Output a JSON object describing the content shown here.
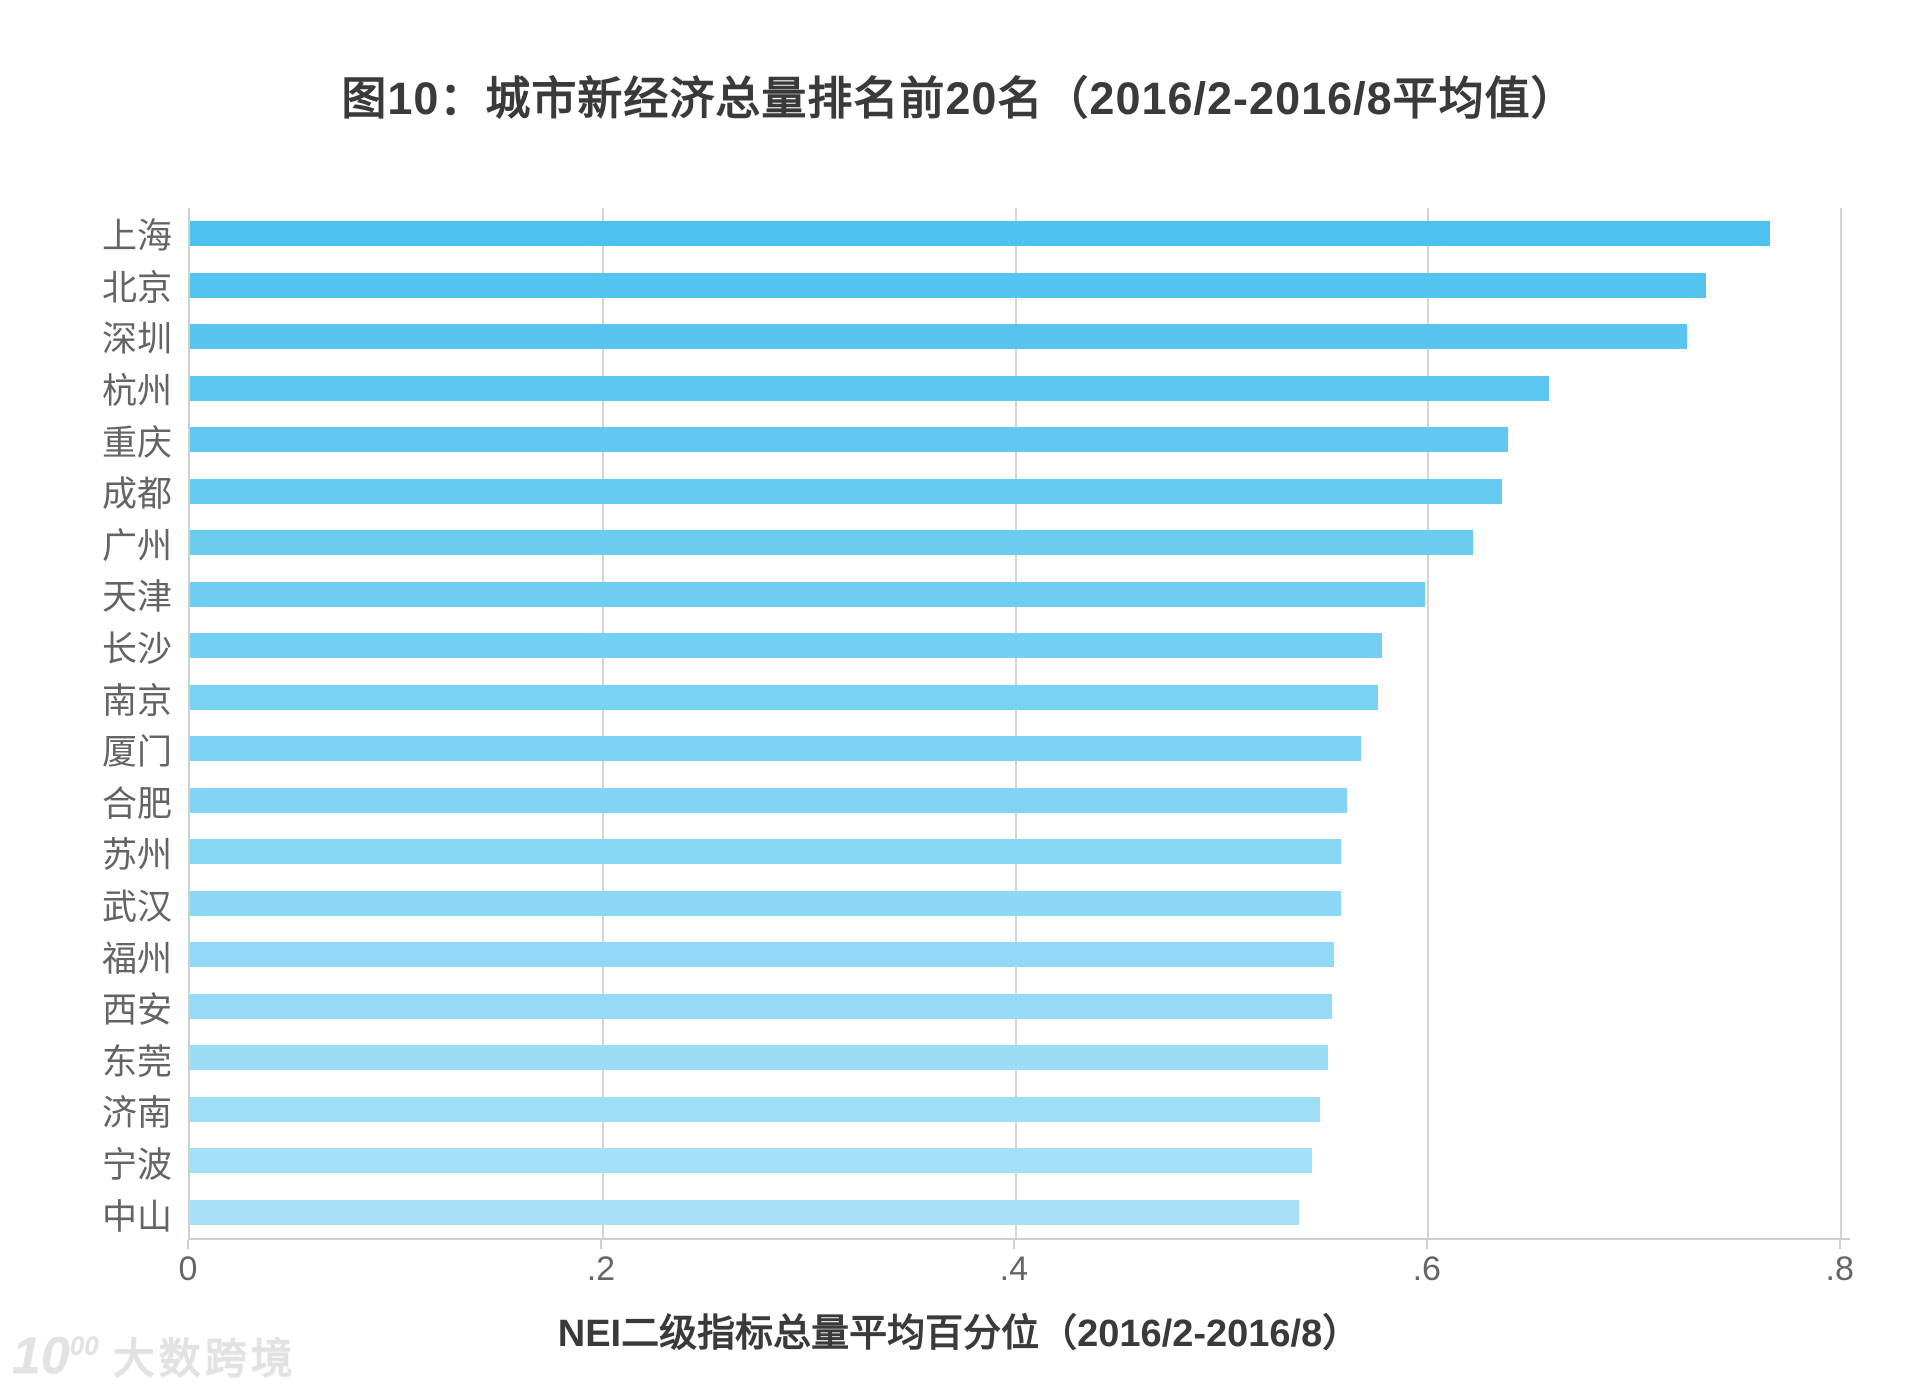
{
  "title": "图10：城市新经济总量排名前20名（2016/2-2016/8平均值）",
  "watermark": {
    "logo_main": "10",
    "logo_sup": "00",
    "brand_name": "大数跨境"
  },
  "chart_data": {
    "type": "bar",
    "orientation": "horizontal",
    "title": "图10：城市新经济总量排名前20名（2016/2-2016/8平均值）",
    "xlabel": "NEI二级指标总量平均百分位（2016/2-2016/8）",
    "ylabel": "",
    "categories": [
      "上海",
      "北京",
      "深圳",
      "杭州",
      "重庆",
      "成都",
      "广州",
      "天津",
      "长沙",
      "南京",
      "厦门",
      "合肥",
      "苏州",
      "武汉",
      "福州",
      "西安",
      "东莞",
      "济南",
      "宁波",
      "中山"
    ],
    "values": [
      0.766,
      0.735,
      0.726,
      0.659,
      0.639,
      0.636,
      0.622,
      0.599,
      0.578,
      0.576,
      0.568,
      0.561,
      0.558,
      0.558,
      0.555,
      0.554,
      0.552,
      0.548,
      0.544,
      0.538
    ],
    "xticks": [
      "0",
      ".2",
      ".4",
      ".6",
      ".8"
    ],
    "xtick_values": [
      0,
      0.2,
      0.4,
      0.6,
      0.8
    ],
    "xlim": [
      0,
      0.805
    ],
    "grid": "vertical-gridlines-on",
    "legend": "none",
    "bar_color_top": "#4EC2EF",
    "bar_color_bottom": "#A9E1F8",
    "grid_color": "#CFD8CF",
    "axis_color": "#C9D3C9",
    "tick_label_color": "#666666",
    "category_label_color": "#646464",
    "title_color": "#3A3A3A",
    "background_color": "#FFFFFF"
  }
}
